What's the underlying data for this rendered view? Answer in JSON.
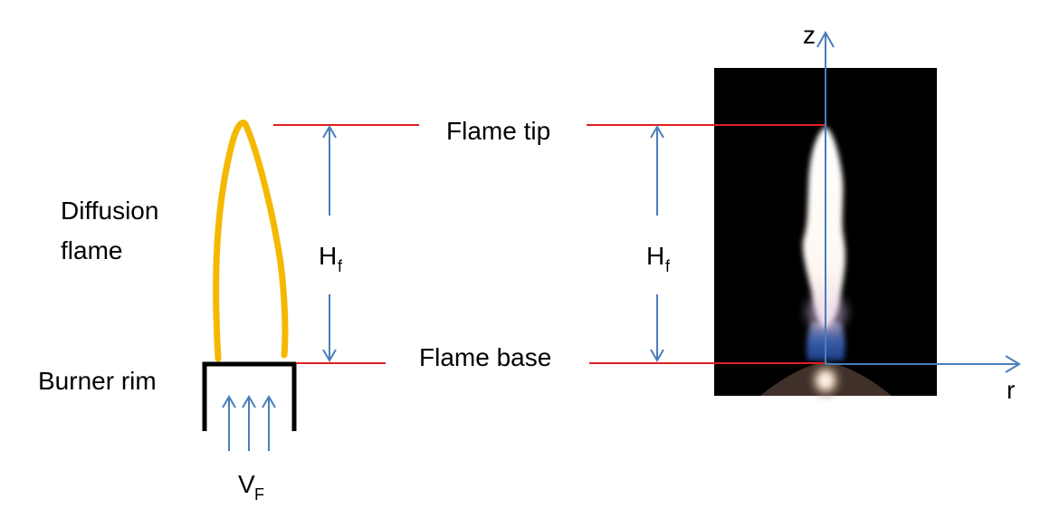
{
  "labels": {
    "diffusion_line1": "Diffusion",
    "diffusion_line2": "flame",
    "burner_rim": "Burner rim",
    "flame_tip": "Flame tip",
    "flame_base": "Flame base",
    "height_main": "H",
    "height_sub": "f",
    "velocity_main": "V",
    "velocity_sub": "F",
    "axis_z": "z",
    "axis_r": "r"
  },
  "colors": {
    "flame_outline": "#F5B800",
    "reference_line": "#E02020",
    "arrow": "#4A7EBB",
    "burner": "#000000",
    "photo_background": "#000000"
  },
  "icons": {
    "flow_arrows": "arrow-up-icon",
    "height_arrows": "double-arrow-icon"
  }
}
